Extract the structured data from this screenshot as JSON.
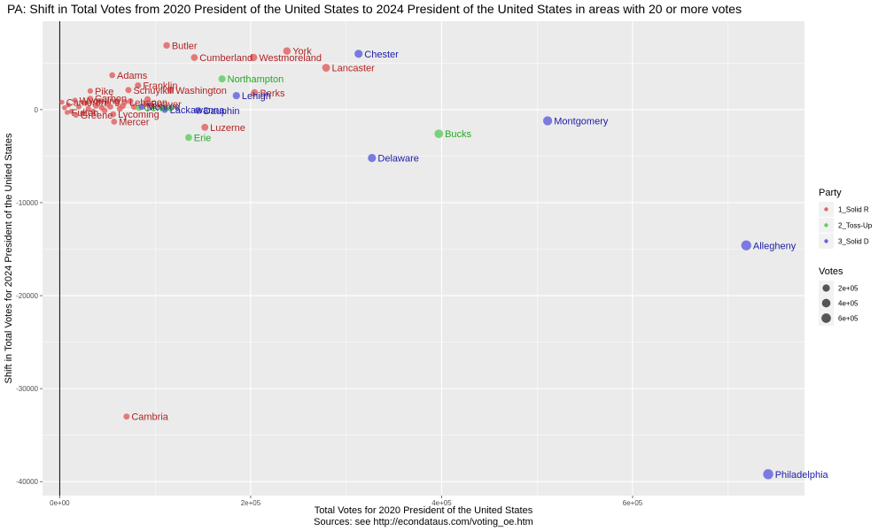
{
  "chart_data": {
    "type": "scatter",
    "title": "PA: Shift in Total Votes from 2020 President of the United States to 2024 President of the United States in areas with 20 or more votes",
    "xlabel": "Total Votes for 2020 President of the United States",
    "caption": "Sources: see http://econdataus.com/voting_oe.htm",
    "ylabel": "Shift in Total Votes for 2024 President of the United States",
    "xlim": [
      -18000,
      780000
    ],
    "ylim": [
      -41500,
      9500
    ],
    "x_ticks": [
      0,
      200000,
      400000,
      600000
    ],
    "x_tick_labels": [
      "0e+00",
      "2e+05",
      "4e+05",
      "6e+05"
    ],
    "y_ticks": [
      -40000,
      -30000,
      -20000,
      -10000,
      0
    ],
    "y_tick_labels": [
      "-40000",
      "-30000",
      "-20000",
      "-10000",
      "0"
    ],
    "grid": true,
    "vline_x": 0,
    "legend_position": "right",
    "legend_party": {
      "title": "Party",
      "items": [
        {
          "key": "R",
          "label": "1_Solid R",
          "color": "#e06666"
        },
        {
          "key": "T",
          "label": "2_Toss-Up",
          "color": "#66cc66"
        },
        {
          "key": "D",
          "label": "3_Solid D",
          "color": "#6666dd"
        }
      ]
    },
    "legend_votes": {
      "title": "Votes",
      "items": [
        {
          "label": "2e+05",
          "value": 200000
        },
        {
          "label": "4e+05",
          "value": 400000
        },
        {
          "label": "6e+05",
          "value": 600000
        }
      ]
    },
    "party_text_colors": {
      "R": "#b22222",
      "T": "#22aa22",
      "D": "#2020aa"
    },
    "points": [
      {
        "name": "Philadelphia",
        "party": "D",
        "x": 742000,
        "y": -39200
      },
      {
        "name": "Allegheny",
        "party": "D",
        "x": 719000,
        "y": -14600
      },
      {
        "name": "Montgomery",
        "party": "D",
        "x": 511000,
        "y": -1200
      },
      {
        "name": "Bucks",
        "party": "T",
        "x": 397000,
        "y": -2600
      },
      {
        "name": "Delaware",
        "party": "D",
        "x": 327000,
        "y": -5200
      },
      {
        "name": "Chester",
        "party": "D",
        "x": 313000,
        "y": 6000
      },
      {
        "name": "Lancaster",
        "party": "R",
        "x": 279000,
        "y": 4500
      },
      {
        "name": "York",
        "party": "R",
        "x": 238000,
        "y": 6300
      },
      {
        "name": "Westmoreland",
        "party": "R",
        "x": 203000,
        "y": 5600
      },
      {
        "name": "Berks",
        "party": "R",
        "x": 204000,
        "y": 1800
      },
      {
        "name": "Lehigh",
        "party": "D",
        "x": 185000,
        "y": 1500
      },
      {
        "name": "Northampton",
        "party": "T",
        "x": 170000,
        "y": 3300
      },
      {
        "name": "Luzerne",
        "party": "R",
        "x": 152000,
        "y": -1900
      },
      {
        "name": "Erie",
        "party": "T",
        "x": 135000,
        "y": -3000
      },
      {
        "name": "Cumberland",
        "party": "R",
        "x": 141000,
        "y": 5600
      },
      {
        "name": "Butler",
        "party": "R",
        "x": 112000,
        "y": 6900
      },
      {
        "name": "Dauphin",
        "party": "D",
        "x": 145000,
        "y": -100
      },
      {
        "name": "Lackawanna",
        "party": "D",
        "x": 110000,
        "y": 0
      },
      {
        "name": "Washington",
        "party": "R",
        "x": 116000,
        "y": 2100
      },
      {
        "name": "Franklin",
        "party": "R",
        "x": 82000,
        "y": 2600
      },
      {
        "name": "Schuylkill",
        "party": "R",
        "x": 72000,
        "y": 2100
      },
      {
        "name": "Adams",
        "party": "R",
        "x": 55000,
        "y": 3700
      },
      {
        "name": "Centre",
        "party": "T",
        "x": 83000,
        "y": 200
      },
      {
        "name": "Monroe",
        "party": "D",
        "x": 86000,
        "y": 300
      },
      {
        "name": "Mercer",
        "party": "R",
        "x": 57000,
        "y": -1300
      },
      {
        "name": "Cambria",
        "party": "R",
        "x": 70000,
        "y": -33000
      },
      {
        "name": "Pike",
        "party": "R",
        "x": 32000,
        "y": 2000
      },
      {
        "name": "Lebanon",
        "party": "R",
        "x": 68000,
        "y": 800
      },
      {
        "name": "Beaver",
        "party": "R",
        "x": 90000,
        "y": 600
      },
      {
        "name": "Wyoming",
        "party": "R",
        "x": 16000,
        "y": 1000
      },
      {
        "name": "Carbon",
        "party": "R",
        "x": 32000,
        "y": 1200
      },
      {
        "name": "Lycoming",
        "party": "R",
        "x": 56000,
        "y": -500
      },
      {
        "name": "Greene",
        "party": "R",
        "x": 17000,
        "y": -600
      },
      {
        "name": "Cameron",
        "party": "R",
        "x": 2400,
        "y": 800
      },
      {
        "name": "Fulton",
        "party": "R",
        "x": 7800,
        "y": -300
      }
    ],
    "extra_points": [
      {
        "party": "R",
        "x": 5000,
        "y": 200
      },
      {
        "party": "R",
        "x": 9000,
        "y": 500
      },
      {
        "party": "R",
        "x": 12000,
        "y": -200
      },
      {
        "party": "R",
        "x": 20000,
        "y": 300
      },
      {
        "party": "R",
        "x": 24000,
        "y": -400
      },
      {
        "party": "R",
        "x": 27000,
        "y": 700
      },
      {
        "party": "R",
        "x": 30000,
        "y": 100
      },
      {
        "party": "R",
        "x": 35000,
        "y": -200
      },
      {
        "party": "R",
        "x": 38000,
        "y": 400
      },
      {
        "party": "R",
        "x": 41000,
        "y": 900
      },
      {
        "party": "R",
        "x": 44000,
        "y": 200
      },
      {
        "party": "R",
        "x": 47000,
        "y": -100
      },
      {
        "party": "R",
        "x": 50000,
        "y": 600
      },
      {
        "party": "R",
        "x": 53000,
        "y": 300
      },
      {
        "party": "R",
        "x": 60000,
        "y": 800
      },
      {
        "party": "R",
        "x": 63000,
        "y": 100
      },
      {
        "party": "R",
        "x": 66000,
        "y": 400
      },
      {
        "party": "R",
        "x": 74000,
        "y": 900
      },
      {
        "party": "R",
        "x": 78000,
        "y": 300
      },
      {
        "party": "R",
        "x": 92000,
        "y": 1100
      },
      {
        "party": "R",
        "x": 96000,
        "y": 400
      }
    ]
  }
}
